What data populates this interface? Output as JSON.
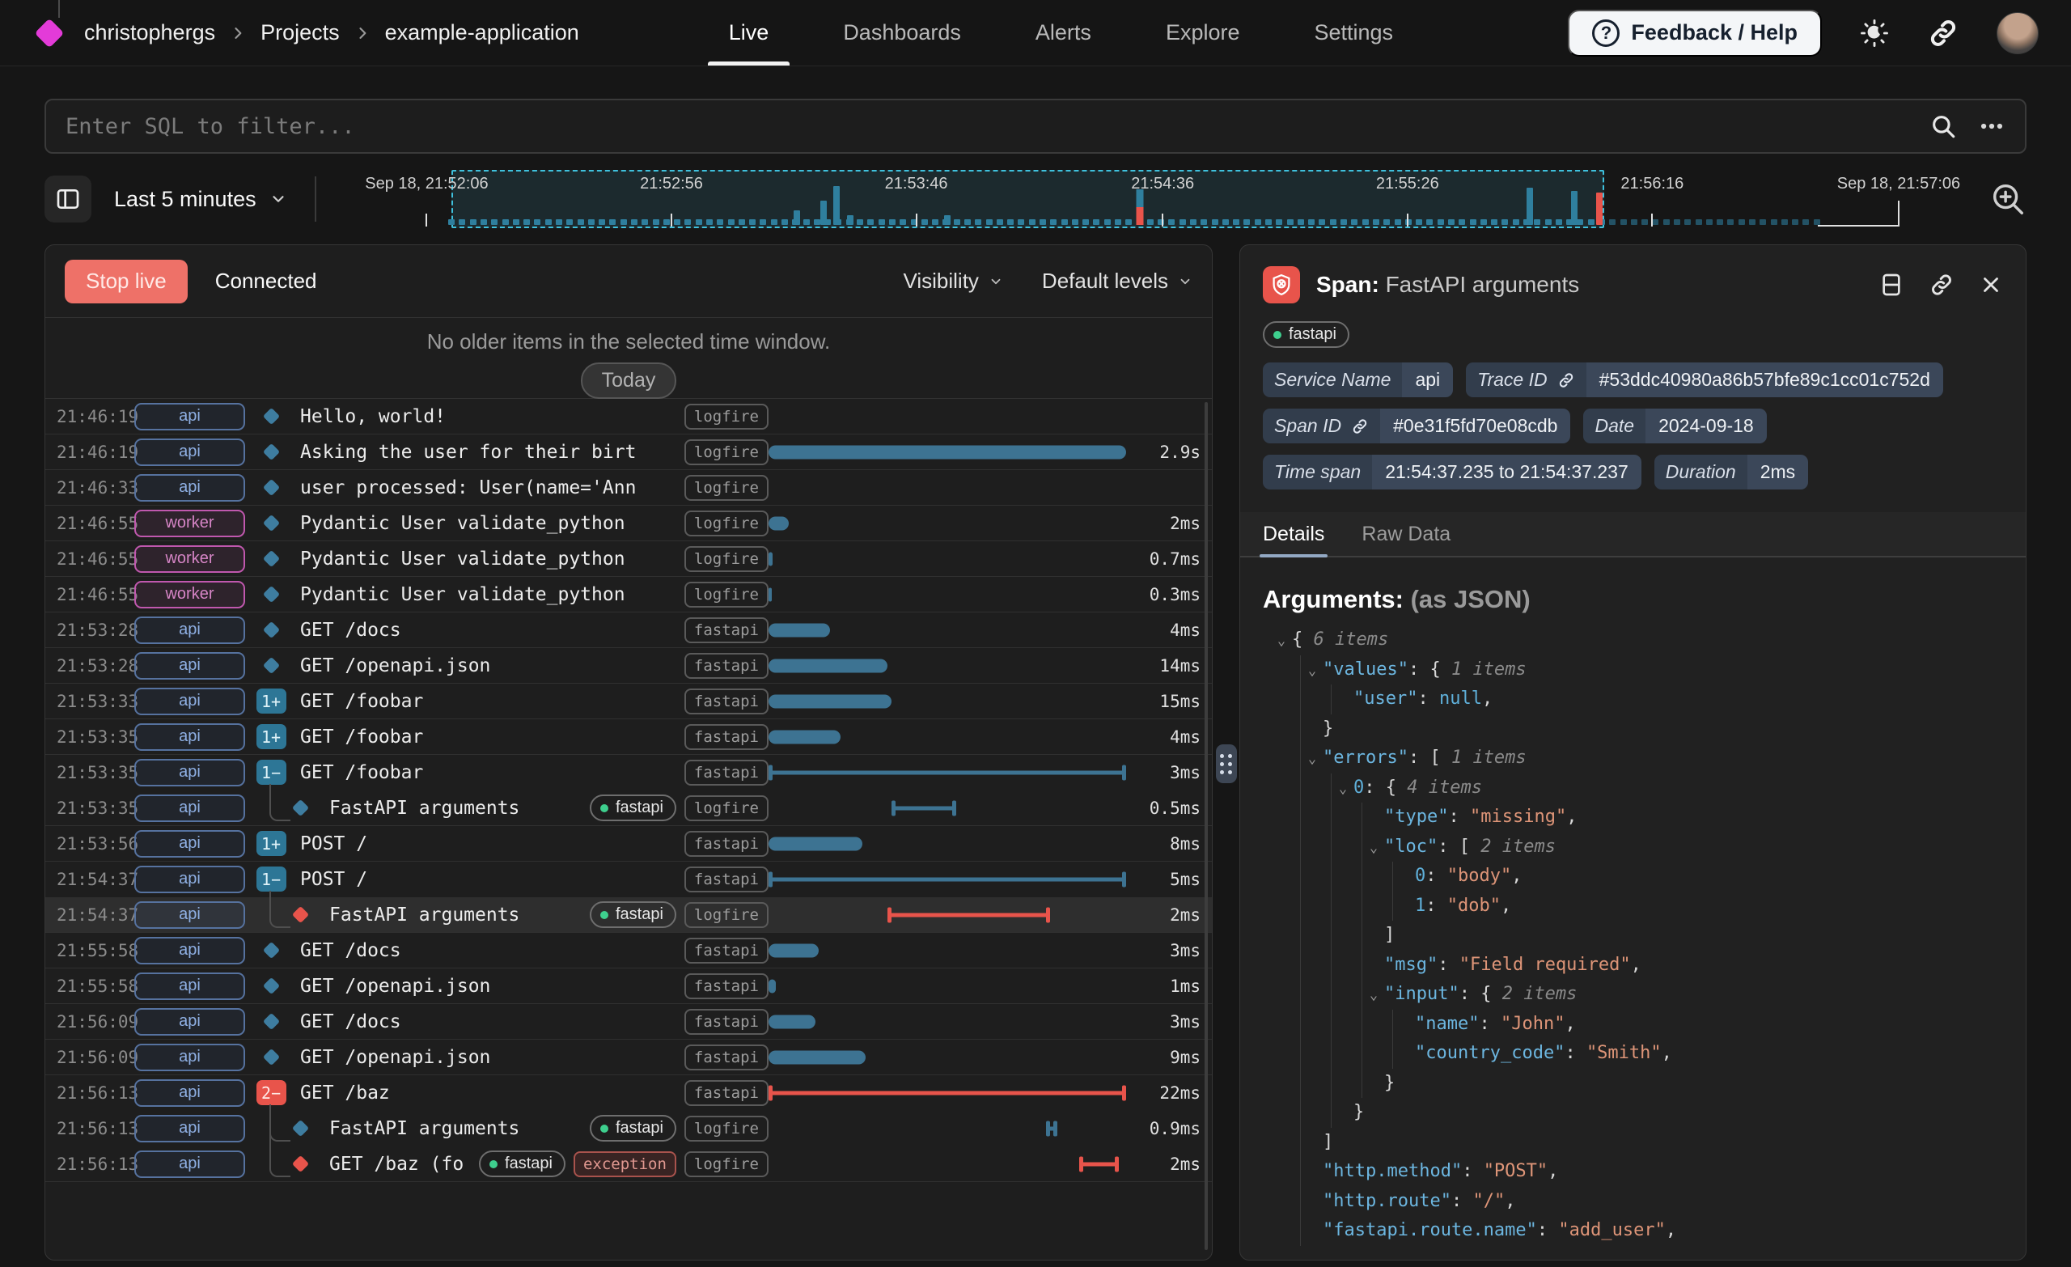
{
  "nav": {
    "breadcrumb": [
      "christophergs",
      "Projects",
      "example-application"
    ],
    "tabs": [
      {
        "label": "Live",
        "active": true
      },
      {
        "label": "Dashboards",
        "active": false
      },
      {
        "label": "Alerts",
        "active": false
      },
      {
        "label": "Explore",
        "active": false
      },
      {
        "label": "Settings",
        "active": false
      }
    ],
    "feedback_label": "Feedback / Help",
    "help_glyph": "?"
  },
  "filter": {
    "placeholder": "Enter SQL to filter..."
  },
  "timebar": {
    "range_label": "Last 5 minutes",
    "ticks": [
      {
        "label": "Sep 18, 21:52:06",
        "x": 0.064
      },
      {
        "label": "21:52:56",
        "x": 0.212
      },
      {
        "label": "21:53:46",
        "x": 0.36
      },
      {
        "label": "21:54:36",
        "x": 0.509
      },
      {
        "label": "21:55:26",
        "x": 0.657
      },
      {
        "label": "21:56:16",
        "x": 0.805
      },
      {
        "label": "Sep 18, 21:57:06",
        "x": 0.954,
        "now": true
      }
    ],
    "selection": {
      "from": 0.079,
      "to": 0.776
    },
    "histogram": {
      "baseline": {
        "from": 0.079,
        "to": 0.905,
        "step": 0.0065,
        "height": 7
      },
      "bright_until": 0.776,
      "spikes": [
        {
          "x": 0.288,
          "h": 18,
          "c": "teal"
        },
        {
          "x": 0.304,
          "h": 30,
          "c": "teal"
        },
        {
          "x": 0.312,
          "h": 48,
          "c": "teal"
        },
        {
          "x": 0.32,
          "h": 12,
          "c": "teal"
        },
        {
          "x": 0.379,
          "h": 12,
          "c": "teal"
        },
        {
          "x": 0.495,
          "h": 44,
          "c": "stack"
        },
        {
          "x": 0.731,
          "h": 46,
          "c": "teal"
        },
        {
          "x": 0.758,
          "h": 42,
          "c": "teal"
        },
        {
          "x": 0.773,
          "h": 40,
          "c": "red"
        }
      ]
    }
  },
  "live": {
    "stop_label": "Stop live",
    "status": "Connected",
    "visibility_label": "Visibility",
    "levels_label": "Default levels",
    "empty_message": "No older items in the selected time window.",
    "today_label": "Today"
  },
  "rows": [
    {
      "t": "21:46:19",
      "svc": "api",
      "marker": {
        "type": "diamond",
        "color": "teal"
      },
      "msg": "Hello, world!",
      "tags": [
        [
          "logfire",
          "plain"
        ]
      ],
      "bar": null,
      "dur": ""
    },
    {
      "t": "21:46:19",
      "svc": "api",
      "marker": {
        "type": "diamond",
        "color": "teal"
      },
      "msg": "Asking the user for their birt",
      "tags": [
        [
          "logfire",
          "plain"
        ]
      ],
      "bar": {
        "style": "solid",
        "s": 0,
        "e": 0.99,
        "color": "teal"
      },
      "dur": "2.9s"
    },
    {
      "t": "21:46:33",
      "svc": "api",
      "marker": {
        "type": "diamond",
        "color": "teal"
      },
      "msg": "user processed: User(name='Ann",
      "tags": [
        [
          "logfire",
          "plain"
        ]
      ],
      "bar": null,
      "dur": ""
    },
    {
      "t": "21:46:55",
      "svc": "worker",
      "marker": {
        "type": "diamond",
        "color": "teal"
      },
      "msg": "Pydantic User validate_python",
      "tags": [
        [
          "logfire",
          "plain"
        ]
      ],
      "bar": {
        "style": "solid",
        "s": 0,
        "e": 0.055,
        "color": "teal"
      },
      "dur": "2ms"
    },
    {
      "t": "21:46:55",
      "svc": "worker",
      "marker": {
        "type": "diamond",
        "color": "teal"
      },
      "msg": "Pydantic User validate_python",
      "tags": [
        [
          "logfire",
          "plain"
        ]
      ],
      "bar": {
        "style": "solid",
        "s": 0,
        "e": 0.012,
        "color": "teal"
      },
      "dur": "0.7ms"
    },
    {
      "t": "21:46:55",
      "svc": "worker",
      "marker": {
        "type": "diamond",
        "color": "teal"
      },
      "msg": "Pydantic User validate_python",
      "tags": [
        [
          "logfire",
          "plain"
        ]
      ],
      "bar": {
        "style": "solid",
        "s": 0,
        "e": 0.008,
        "color": "teal"
      },
      "dur": "0.3ms"
    },
    {
      "t": "21:53:28",
      "svc": "api",
      "marker": {
        "type": "diamond",
        "color": "teal"
      },
      "msg": "GET /docs",
      "tags": [
        [
          "fastapi",
          "plain"
        ]
      ],
      "bar": {
        "style": "solid",
        "s": 0,
        "e": 0.17,
        "color": "teal"
      },
      "dur": "4ms"
    },
    {
      "t": "21:53:28",
      "svc": "api",
      "marker": {
        "type": "diamond",
        "color": "teal"
      },
      "msg": "GET /openapi.json",
      "tags": [
        [
          "fastapi",
          "plain"
        ]
      ],
      "bar": {
        "style": "solid",
        "s": 0,
        "e": 0.33,
        "color": "teal"
      },
      "dur": "14ms"
    },
    {
      "t": "21:53:33",
      "svc": "api",
      "marker": {
        "type": "badge",
        "color": "teal",
        "label": "1+"
      },
      "msg": "GET /foobar",
      "tags": [
        [
          "fastapi",
          "plain"
        ]
      ],
      "bar": {
        "style": "solid",
        "s": 0,
        "e": 0.34,
        "color": "teal"
      },
      "dur": "15ms"
    },
    {
      "t": "21:53:35",
      "svc": "api",
      "marker": {
        "type": "badge",
        "color": "teal",
        "label": "1+"
      },
      "msg": "GET /foobar",
      "tags": [
        [
          "fastapi",
          "plain"
        ]
      ],
      "bar": {
        "style": "solid",
        "s": 0,
        "e": 0.2,
        "color": "teal"
      },
      "dur": "4ms"
    },
    {
      "t": "21:53:35",
      "svc": "api",
      "marker": {
        "type": "badge",
        "color": "teal",
        "label": "1−"
      },
      "nb": true,
      "msg": "GET /foobar",
      "tags": [
        [
          "fastapi",
          "plain"
        ]
      ],
      "bar": {
        "style": "ibeam",
        "s": 0,
        "e": 0.99,
        "color": "teal"
      },
      "dur": "3ms"
    },
    {
      "t": "21:53:35",
      "svc": "api",
      "marker": {
        "type": "diamond",
        "color": "teal"
      },
      "child": 1,
      "msg": "FastAPI arguments",
      "tags": [
        [
          "fastapi",
          "dot"
        ],
        [
          "logfire",
          "plain"
        ]
      ],
      "bar": {
        "style": "ibeam",
        "s": 0.34,
        "e": 0.52,
        "color": "teal"
      },
      "dur": "0.5ms"
    },
    {
      "t": "21:53:56",
      "svc": "api",
      "marker": {
        "type": "badge",
        "color": "teal",
        "label": "1+"
      },
      "msg": "POST /",
      "tags": [
        [
          "fastapi",
          "plain"
        ]
      ],
      "bar": {
        "style": "solid",
        "s": 0,
        "e": 0.26,
        "color": "teal"
      },
      "dur": "8ms"
    },
    {
      "t": "21:54:37",
      "svc": "api",
      "marker": {
        "type": "badge",
        "color": "teal",
        "label": "1−"
      },
      "nb": true,
      "msg": "POST /",
      "tags": [
        [
          "fastapi",
          "plain"
        ]
      ],
      "bar": {
        "style": "ibeam",
        "s": 0,
        "e": 0.99,
        "color": "teal"
      },
      "dur": "5ms"
    },
    {
      "t": "21:54:37",
      "svc": "api",
      "marker": {
        "type": "diamond",
        "color": "red"
      },
      "child": 1,
      "selected": true,
      "msg": "FastAPI arguments",
      "tags": [
        [
          "fastapi",
          "dot"
        ],
        [
          "logfire",
          "plain"
        ]
      ],
      "bar": {
        "style": "ibeam",
        "s": 0.33,
        "e": 0.78,
        "color": "red"
      },
      "dur": "2ms"
    },
    {
      "t": "21:55:58",
      "svc": "api",
      "marker": {
        "type": "diamond",
        "color": "teal"
      },
      "msg": "GET /docs",
      "tags": [
        [
          "fastapi",
          "plain"
        ]
      ],
      "bar": {
        "style": "solid",
        "s": 0,
        "e": 0.14,
        "color": "teal"
      },
      "dur": "3ms"
    },
    {
      "t": "21:55:58",
      "svc": "api",
      "marker": {
        "type": "diamond",
        "color": "teal"
      },
      "msg": "GET /openapi.json",
      "tags": [
        [
          "fastapi",
          "plain"
        ]
      ],
      "bar": {
        "style": "solid",
        "s": 0,
        "e": 0.02,
        "color": "teal"
      },
      "dur": "1ms"
    },
    {
      "t": "21:56:09",
      "svc": "api",
      "marker": {
        "type": "diamond",
        "color": "teal"
      },
      "msg": "GET /docs",
      "tags": [
        [
          "fastapi",
          "plain"
        ]
      ],
      "bar": {
        "style": "solid",
        "s": 0,
        "e": 0.13,
        "color": "teal"
      },
      "dur": "3ms"
    },
    {
      "t": "21:56:09",
      "svc": "api",
      "marker": {
        "type": "diamond",
        "color": "teal"
      },
      "msg": "GET /openapi.json",
      "tags": [
        [
          "fastapi",
          "plain"
        ]
      ],
      "bar": {
        "style": "solid",
        "s": 0,
        "e": 0.27,
        "color": "teal"
      },
      "dur": "9ms"
    },
    {
      "t": "21:56:13",
      "svc": "api",
      "marker": {
        "type": "badge",
        "color": "red",
        "label": "2−"
      },
      "nb": true,
      "msg": "GET /baz",
      "tags": [
        [
          "fastapi",
          "plain"
        ]
      ],
      "bar": {
        "style": "ibeam",
        "s": 0,
        "e": 0.99,
        "color": "red"
      },
      "dur": "22ms"
    },
    {
      "t": "21:56:13",
      "svc": "api",
      "marker": {
        "type": "diamond",
        "color": "teal"
      },
      "child": 1,
      "nb": true,
      "msg": "FastAPI arguments",
      "tags": [
        [
          "fastapi",
          "dot"
        ],
        [
          "logfire",
          "plain"
        ]
      ],
      "bar": {
        "style": "ibeam",
        "s": 0.77,
        "e": 0.8,
        "color": "teal"
      },
      "dur": "0.9ms"
    },
    {
      "t": "21:56:13",
      "svc": "api",
      "marker": {
        "type": "diamond",
        "color": "red"
      },
      "child": 2,
      "msg": "GET /baz (fo",
      "tags": [
        [
          "fastapi",
          "dot"
        ],
        [
          "exception",
          "exc"
        ],
        [
          "logfire",
          "plain"
        ]
      ],
      "bar": {
        "style": "ibeam",
        "s": 0.86,
        "e": 0.97,
        "color": "red"
      },
      "dur": "2ms"
    }
  ],
  "detail": {
    "title_prefix": "Span:",
    "title": "FastAPI arguments",
    "scope_tag": "fastapi",
    "chips": [
      {
        "label": "Service Name",
        "value": "api",
        "link": false
      },
      {
        "label": "Trace ID",
        "value": "#53ddc40980a86b57bfe89c1cc01c752d",
        "link": true
      },
      {
        "label": "Span ID",
        "value": "#0e31f5fd70e08cdb",
        "link": true
      },
      {
        "label": "Date",
        "value": "2024-09-18",
        "link": false
      },
      {
        "label": "Time span",
        "value": "21:54:37.235 to 21:54:37.237",
        "link": false
      },
      {
        "label": "Duration",
        "value": "2ms",
        "link": false
      }
    ],
    "tabs": [
      {
        "label": "Details",
        "active": true
      },
      {
        "label": "Raw Data",
        "active": false
      }
    ],
    "heading": "Arguments:",
    "heading_suffix": "(as JSON)",
    "json_lines": [
      {
        "indent": 0,
        "caret": true,
        "tokens": [
          [
            "{ ",
            "p"
          ],
          [
            "6 items",
            "m"
          ]
        ]
      },
      {
        "indent": 1,
        "caret": true,
        "tokens": [
          [
            "\"values\"",
            "k"
          ],
          [
            ": { ",
            "p"
          ],
          [
            "1 items",
            "m"
          ]
        ]
      },
      {
        "indent": 2,
        "caret": false,
        "tokens": [
          [
            "\"user\"",
            "k"
          ],
          [
            ": ",
            "p"
          ],
          [
            "null",
            "n"
          ],
          [
            ",",
            "p"
          ]
        ]
      },
      {
        "indent": 1,
        "caret": false,
        "tokens": [
          [
            "}",
            "p"
          ]
        ]
      },
      {
        "indent": 1,
        "caret": true,
        "tokens": [
          [
            "\"errors\"",
            "k"
          ],
          [
            ": [ ",
            "p"
          ],
          [
            "1 items",
            "m"
          ]
        ]
      },
      {
        "indent": 2,
        "caret": true,
        "tokens": [
          [
            "0",
            "n"
          ],
          [
            ": { ",
            "p"
          ],
          [
            "4 items",
            "m"
          ]
        ]
      },
      {
        "indent": 3,
        "caret": false,
        "tokens": [
          [
            "\"type\"",
            "k"
          ],
          [
            ": ",
            "p"
          ],
          [
            "\"missing\"",
            "s"
          ],
          [
            ",",
            "p"
          ]
        ]
      },
      {
        "indent": 3,
        "caret": true,
        "tokens": [
          [
            "\"loc\"",
            "k"
          ],
          [
            ": [ ",
            "p"
          ],
          [
            "2 items",
            "m"
          ]
        ]
      },
      {
        "indent": 4,
        "caret": false,
        "tokens": [
          [
            "0",
            "n"
          ],
          [
            ": ",
            "p"
          ],
          [
            "\"body\"",
            "s"
          ],
          [
            ",",
            "p"
          ]
        ]
      },
      {
        "indent": 4,
        "caret": false,
        "tokens": [
          [
            "1",
            "n"
          ],
          [
            ": ",
            "p"
          ],
          [
            "\"dob\"",
            "s"
          ],
          [
            ",",
            "p"
          ]
        ]
      },
      {
        "indent": 3,
        "caret": false,
        "tokens": [
          [
            "]",
            "p"
          ]
        ]
      },
      {
        "indent": 3,
        "caret": false,
        "tokens": [
          [
            "\"msg\"",
            "k"
          ],
          [
            ": ",
            "p"
          ],
          [
            "\"Field required\"",
            "s"
          ],
          [
            ",",
            "p"
          ]
        ]
      },
      {
        "indent": 3,
        "caret": true,
        "tokens": [
          [
            "\"input\"",
            "k"
          ],
          [
            ": { ",
            "p"
          ],
          [
            "2 items",
            "m"
          ]
        ]
      },
      {
        "indent": 4,
        "caret": false,
        "tokens": [
          [
            "\"name\"",
            "k"
          ],
          [
            ": ",
            "p"
          ],
          [
            "\"John\"",
            "s"
          ],
          [
            ",",
            "p"
          ]
        ]
      },
      {
        "indent": 4,
        "caret": false,
        "tokens": [
          [
            "\"country_code\"",
            "k"
          ],
          [
            ": ",
            "p"
          ],
          [
            "\"Smith\"",
            "s"
          ],
          [
            ",",
            "p"
          ]
        ]
      },
      {
        "indent": 3,
        "caret": false,
        "tokens": [
          [
            "}",
            "p"
          ]
        ]
      },
      {
        "indent": 2,
        "caret": false,
        "tokens": [
          [
            "}",
            "p"
          ]
        ]
      },
      {
        "indent": 1,
        "caret": false,
        "tokens": [
          [
            "]",
            "p"
          ]
        ]
      },
      {
        "indent": 1,
        "caret": false,
        "tokens": [
          [
            "\"http.method\"",
            "k"
          ],
          [
            ": ",
            "p"
          ],
          [
            "\"POST\"",
            "s"
          ],
          [
            ",",
            "p"
          ]
        ]
      },
      {
        "indent": 1,
        "caret": false,
        "tokens": [
          [
            "\"http.route\"",
            "k"
          ],
          [
            ": ",
            "p"
          ],
          [
            "\"/\"",
            "s"
          ],
          [
            ",",
            "p"
          ]
        ]
      },
      {
        "indent": 1,
        "caret": false,
        "tokens": [
          [
            "\"fastapi.route.name\"",
            "k"
          ],
          [
            ": ",
            "p"
          ],
          [
            "\"add_user\"",
            "s"
          ],
          [
            ",",
            "p"
          ]
        ]
      }
    ]
  },
  "colors": {
    "brand_magenta": "#e33bd8",
    "accent_teal": "#3d7392",
    "histogram_teal": "#2f7f9e",
    "histogram_dim": "#235265",
    "error_red": "#e8544b",
    "selection_cyan": "#3fc1dd",
    "fastapi_green": "#3ecf8e",
    "api_blue": "#8fb0e4",
    "worker_pink": "#d685c6"
  }
}
